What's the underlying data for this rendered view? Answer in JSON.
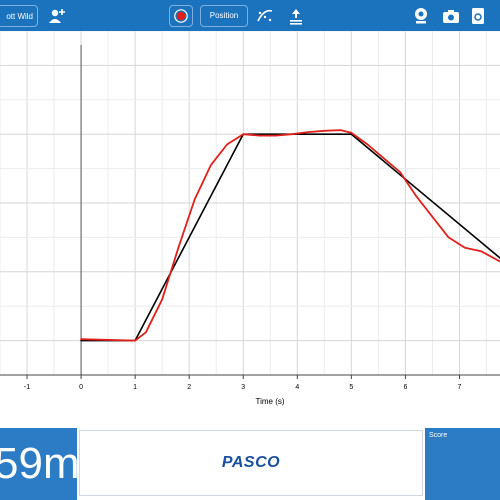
{
  "toolbar": {
    "user_label": "ott Wild",
    "position_label": "Position",
    "icons": [
      "add-user-icon",
      "record-icon",
      "curve-fit-icon",
      "upload-icon",
      "webcam-icon",
      "camera-icon",
      "export-icon"
    ]
  },
  "colors": {
    "toolbar": "#1c73bd",
    "panel": "#2b7cc4",
    "target_line": "#000000",
    "measured_line": "#e0201b"
  },
  "chart_data": {
    "type": "line",
    "xlabel": "Time (s)",
    "x_ticks": [
      "-1",
      "0",
      "1",
      "2",
      "3",
      "4",
      "5",
      "6",
      "7"
    ],
    "xlim": [
      -1.5,
      7.75
    ],
    "ylim": [
      0.5,
      5.5
    ],
    "grid": true,
    "series": [
      {
        "x": [
          0,
          1,
          3,
          5,
          7.75
        ],
        "y": [
          1,
          1,
          4,
          4,
          2.2
        ]
      },
      {
        "x": [
          0,
          1,
          1.2,
          1.5,
          1.8,
          2.1,
          2.4,
          2.7,
          3.0,
          3.3,
          3.6,
          3.9,
          4.2,
          4.5,
          4.8,
          5.0,
          5.3,
          5.6,
          5.9,
          6.2,
          6.5,
          6.8,
          7.1,
          7.4,
          7.75
        ],
        "y": [
          1.02,
          1.0,
          1.12,
          1.6,
          2.35,
          3.05,
          3.55,
          3.85,
          4.0,
          3.98,
          3.98,
          4.0,
          4.03,
          4.05,
          4.06,
          4.02,
          3.85,
          3.65,
          3.45,
          3.1,
          2.8,
          2.5,
          2.35,
          2.3,
          2.15
        ]
      }
    ]
  },
  "readout": {
    "value": "59m"
  },
  "logo_text": "PASCO",
  "score": {
    "label": "Score"
  }
}
